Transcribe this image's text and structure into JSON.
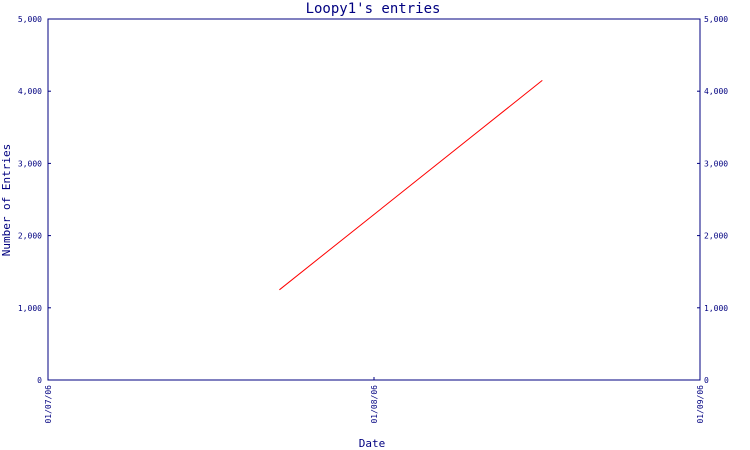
{
  "colors": {
    "axis": "#000080",
    "series": "#ff0000",
    "background": "#ffffff"
  },
  "chart_data": {
    "type": "line",
    "title": "Loopy1's entries",
    "xlabel": "Date",
    "ylabel": "Number of Entries",
    "x_tick_labels": [
      "01/07/06",
      "01/08/06",
      "01/09/06"
    ],
    "x_range": [
      "2006-07-01",
      "2006-09-01"
    ],
    "y_tick_labels": [
      "0",
      "1,000",
      "2,000",
      "3,000",
      "4,000",
      "5,000"
    ],
    "ylim": [
      0,
      5000
    ],
    "grid": false,
    "right_axis_mirrors_left": true,
    "series": [
      {
        "points": [
          {
            "x": "2006-07-23",
            "y": 1250
          },
          {
            "x": "2006-08-17",
            "y": 4150
          }
        ]
      }
    ]
  }
}
